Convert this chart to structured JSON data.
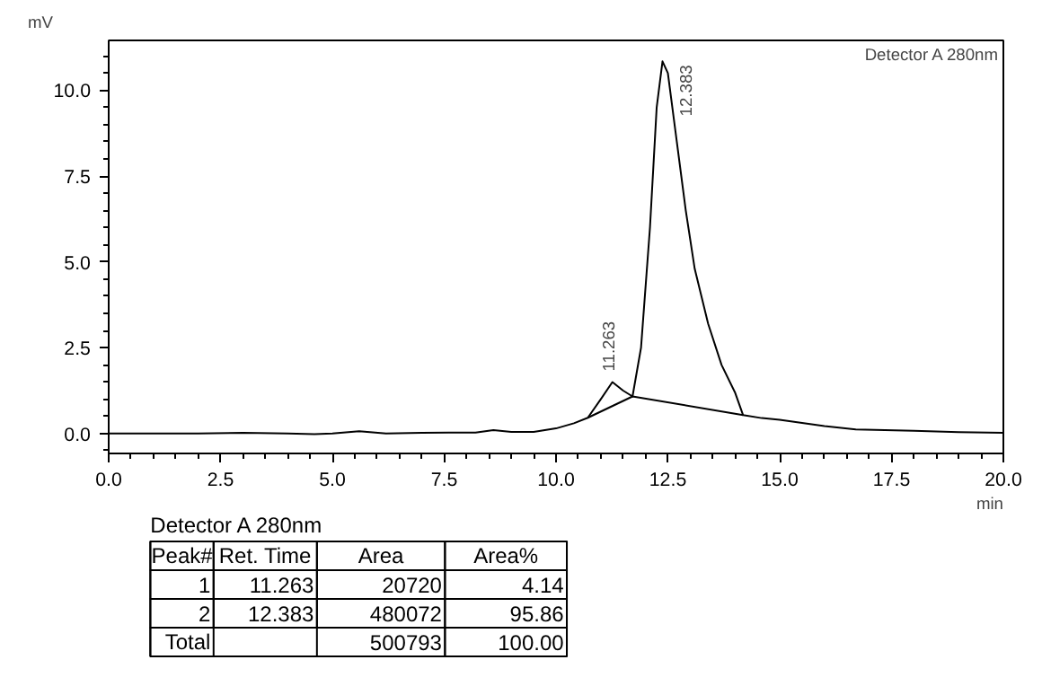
{
  "chart_data": {
    "type": "line",
    "title": "Detector A 280nm",
    "xlabel": "min",
    "ylabel": "mV",
    "xlim": [
      0,
      20
    ],
    "ylim": [
      -0.58,
      11.45
    ],
    "xticks": [
      {
        "value": 0,
        "label": "0.0"
      },
      {
        "value": 2.5,
        "label": "2.5"
      },
      {
        "value": 5,
        "label": "5.0"
      },
      {
        "value": 7.5,
        "label": "7.5"
      },
      {
        "value": 10,
        "label": "10.0"
      },
      {
        "value": 12.5,
        "label": "12.5"
      },
      {
        "value": 15,
        "label": "15.0"
      },
      {
        "value": 17.5,
        "label": "17.5"
      },
      {
        "value": 20,
        "label": "20.0"
      }
    ],
    "yticks": [
      {
        "value": 0,
        "label": "0.0"
      },
      {
        "value": 2.5,
        "label": "2.5"
      },
      {
        "value": 5,
        "label": "5.0"
      },
      {
        "value": 7.5,
        "label": "7.5"
      },
      {
        "value": 10,
        "label": "10.0"
      }
    ],
    "grid": false,
    "marker": "none",
    "line_style": "solid",
    "series": [
      {
        "color": "#000000",
        "x": [
          0,
          1,
          2,
          3,
          4,
          4.6,
          5,
          5.6,
          6.2,
          7,
          7.6,
          8.2,
          8.6,
          9,
          9.5,
          10,
          10.4,
          10.71,
          11.0,
          11.26,
          11.5,
          11.71,
          11.9,
          12.1,
          12.25,
          12.38,
          12.5,
          12.7,
          12.9,
          13.1,
          13.4,
          13.7,
          14.0,
          14.18,
          14.6,
          15,
          16,
          16.7,
          18,
          19,
          20
        ],
        "values": [
          0,
          0,
          0,
          0.02,
          0,
          -0.02,
          0,
          0.07,
          0,
          0.02,
          0.03,
          0.03,
          0.1,
          0.05,
          0.05,
          0.15,
          0.3,
          0.46,
          1.0,
          1.5,
          1.25,
          1.08,
          2.5,
          6.0,
          9.5,
          10.84,
          10.5,
          8.5,
          6.5,
          4.8,
          3.2,
          2.0,
          1.2,
          0.54,
          0.45,
          0.4,
          0.22,
          0.12,
          0.08,
          0.04,
          0.02
        ]
      },
      {
        "color": "#000000",
        "x": [
          10.71,
          11.71,
          14.18
        ],
        "values": [
          0.46,
          1.08,
          0.54
        ]
      }
    ],
    "annotations": [
      {
        "text": "11.263",
        "x": 11.263,
        "y": 1.5
      },
      {
        "text": "12.383",
        "x": 12.383,
        "y": 10.84
      },
      "Detector A 280nm",
      "Peak#",
      "Ret. Time",
      "Area",
      "Area%",
      "1",
      "11.263",
      "20720",
      "4.14",
      "2",
      "12.383",
      "480072",
      "95.86",
      "Total",
      null,
      "500793",
      "100.00"
    ]
  }
}
